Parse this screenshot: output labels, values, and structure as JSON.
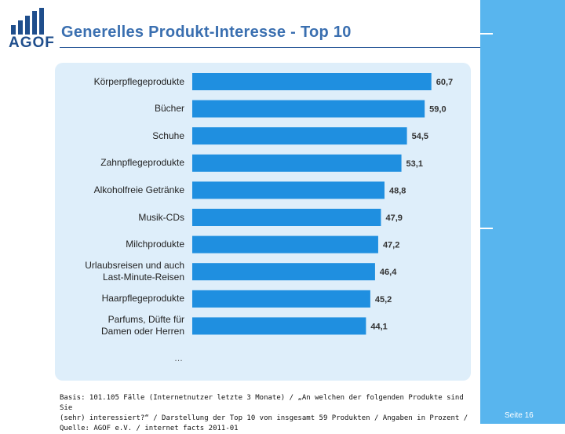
{
  "logo": {
    "text": "AGOF"
  },
  "title": "Generelles Produkt-Interesse - Top 10",
  "chart_data": {
    "type": "bar",
    "orientation": "horizontal",
    "categories": [
      "Körperpflegeprodukte",
      "Bücher",
      "Schuhe",
      "Zahnpflegeprodukte",
      "Alkoholfreie Getränke",
      "Musik-CDs",
      "Milchprodukte",
      "Urlaubsreisen und auch Last-Minute-Reisen",
      "Haarpflegeprodukte",
      "Parfums, Düfte für Damen oder Herren"
    ],
    "category_lines": [
      [
        "Körperpflegeprodukte"
      ],
      [
        "Bücher"
      ],
      [
        "Schuhe"
      ],
      [
        "Zahnpflegeprodukte"
      ],
      [
        "Alkoholfreie Getränke"
      ],
      [
        "Musik-CDs"
      ],
      [
        "Milchprodukte"
      ],
      [
        "Urlaubsreisen und auch",
        "Last-Minute-Reisen"
      ],
      [
        "Haarpflegeprodukte"
      ],
      [
        "Parfums, Düfte für",
        "Damen oder Herren"
      ]
    ],
    "values": [
      60.7,
      59.0,
      54.5,
      53.1,
      48.8,
      47.9,
      47.2,
      46.4,
      45.2,
      44.1
    ],
    "value_labels": [
      "60,7",
      "59,0",
      "54,5",
      "53,1",
      "48,8",
      "47,9",
      "47,2",
      "46,4",
      "45,2",
      "44,1"
    ],
    "xlim": [
      0,
      70
    ],
    "grid": false,
    "bar_color": "#1f8fe0",
    "trailing_text": "…"
  },
  "footnote": "Basis: 101.105 Fälle (Internetnutzer letzte 3 Monate) / „An welchen der folgenden Produkte sind Sie\n(sehr) interessiert?“ / Darstellung der Top 10 von insgesamt 59 Produkten / Angaben in Prozent /\nQuelle: AGOF e.V. / internet facts 2011-01",
  "page_number": "Seite 16",
  "colors": {
    "brand": "#1f4e8c",
    "title": "#3a6fb0",
    "panel": "#deeefa",
    "side_band": "#58b5ee"
  }
}
